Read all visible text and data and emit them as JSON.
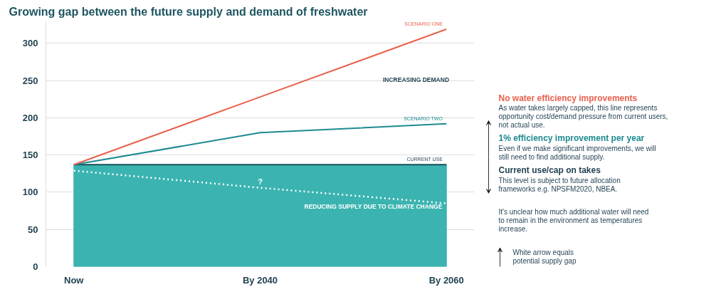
{
  "chart_data": {
    "type": "line",
    "title": "Growing gap between the future supply and demand of freshwater",
    "categories": [
      "Now",
      "By 2040",
      "By 2060"
    ],
    "ylim": [
      0,
      330
    ],
    "yticks": [
      0,
      50,
      100,
      150,
      200,
      250,
      300
    ],
    "grid": "y",
    "series": [
      {
        "name": "SCENARIO ONE",
        "color": "#e8604c",
        "values": [
          137,
          228,
          319
        ]
      },
      {
        "name": "SCENARIO TWO",
        "color": "#1d8a90",
        "values": [
          137,
          180,
          192
        ]
      },
      {
        "name": "CURRENT USE",
        "type": "area",
        "color": "#3bb4b1",
        "values": [
          137,
          137,
          137
        ]
      },
      {
        "color": "#ffffff",
        "line_style": "dotted",
        "values": [
          129,
          106,
          85
        ]
      }
    ],
    "annotations": [
      "INCREASING DEMAND",
      {
        "text": "?",
        "x": "By 2040",
        "y": 106
      },
      "REDUCING SUPPLY DUE TO CLIMATE CHANGE",
      "No water efficiency improvements",
      "As water takes largely capped, this line represents opportunity cost/demand pressure from current users, not actual use.",
      "1% efficiency improvement per year",
      "Even if we make significant improvements, we will still need to find additional supply.",
      "Current use/cap on takes",
      "This level is subject to future allocation frameworks e.g. NPSFM2020, NBEA.",
      "It's unclear how much additional water will need to remain in the environment as temperatures increase.",
      "White arrow equals potential supply gap"
    ]
  }
}
